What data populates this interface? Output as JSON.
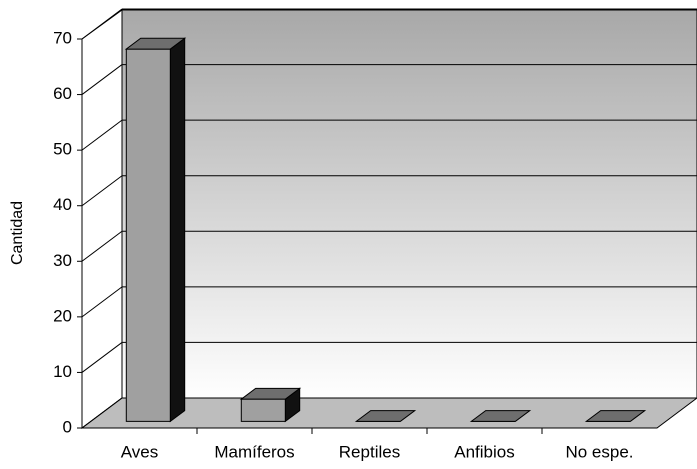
{
  "chart_data": {
    "type": "bar3d",
    "y_label": "Cantidad",
    "categories": [
      "Aves",
      "Mamíferos",
      "Reptiles",
      "Anfibios",
      "No espe."
    ],
    "values": [
      67,
      4,
      0,
      0,
      0
    ],
    "ylim": [
      0,
      70
    ],
    "yticks": [
      0,
      10,
      20,
      30,
      40,
      50,
      60,
      70
    ],
    "grid": true,
    "color": "#a0a0a0"
  }
}
